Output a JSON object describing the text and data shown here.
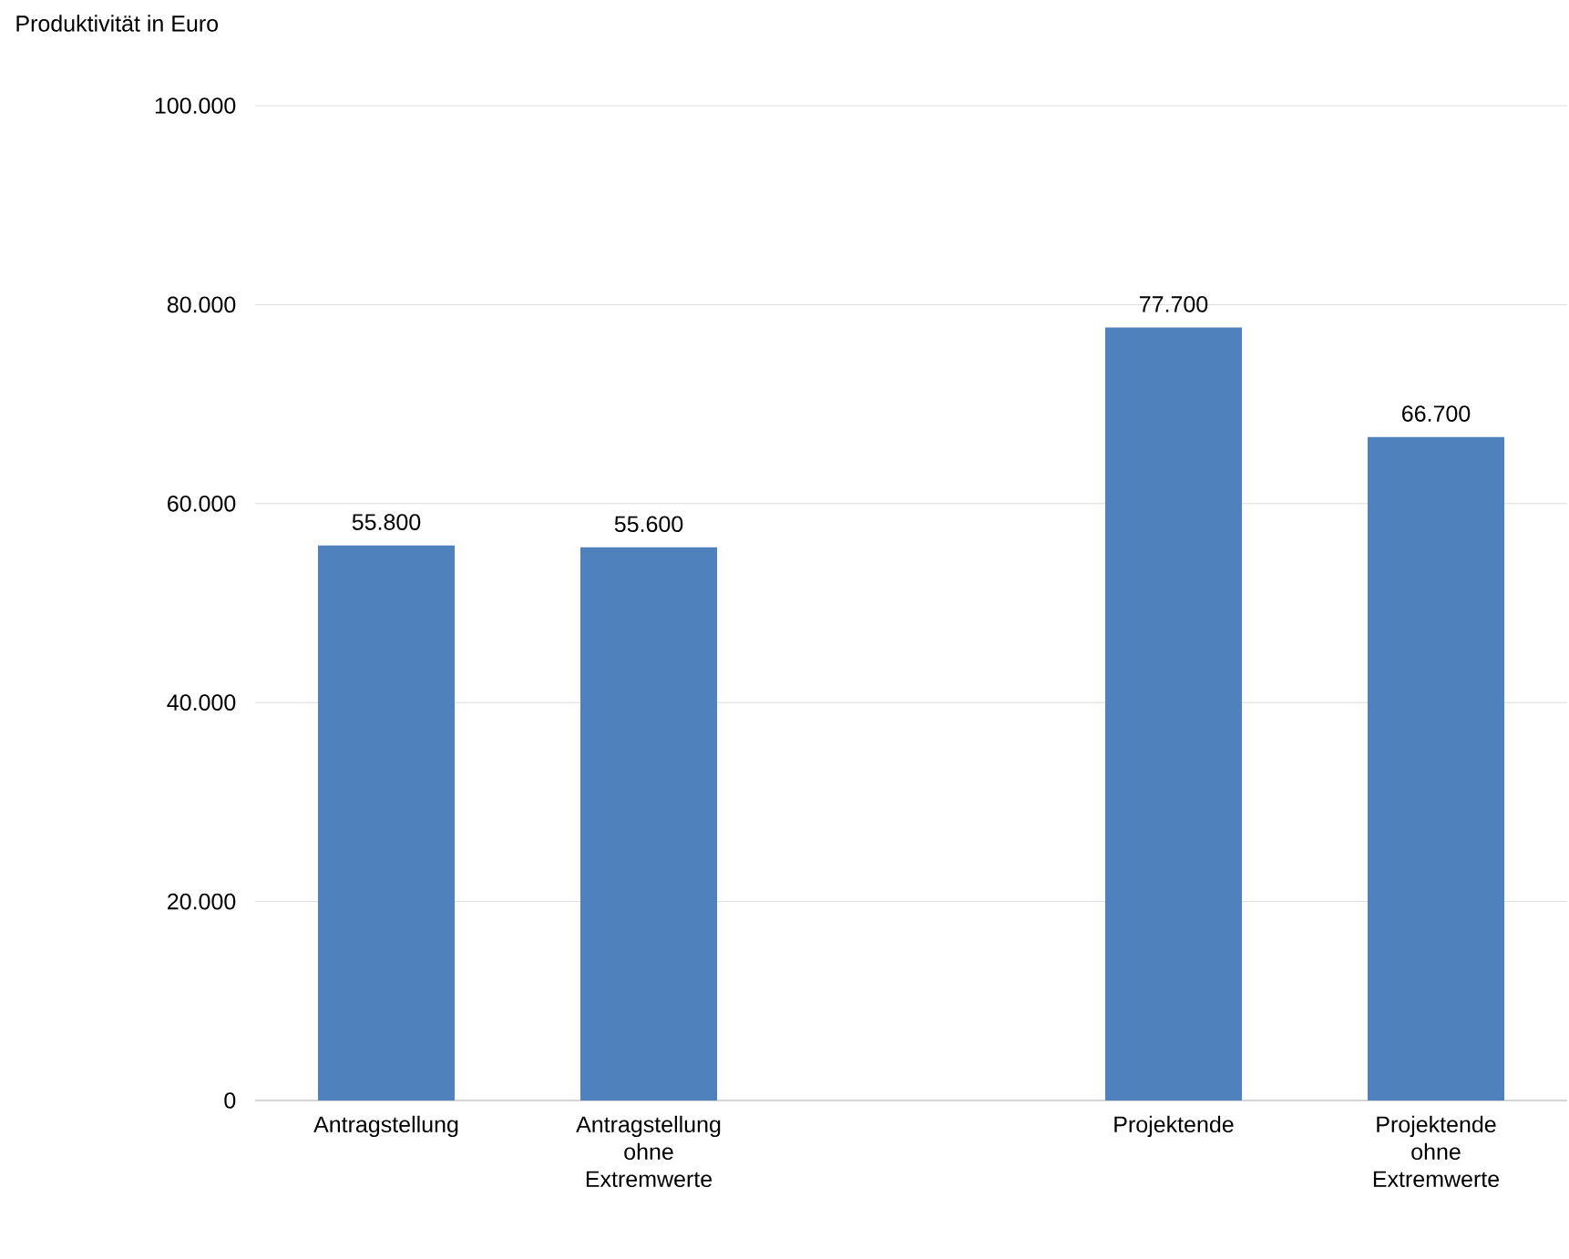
{
  "chart_data": {
    "type": "bar",
    "ylabel": "Produktivität in Euro",
    "categories": [
      "Antragstellung",
      "Antragstellung ohne Extremwerte",
      null,
      "Projektende",
      "Projektende ohne Extremwerte"
    ],
    "values": [
      55800,
      55600,
      null,
      77700,
      66700
    ],
    "value_labels": [
      "55.800",
      "55.600",
      null,
      "77.700",
      "66.700"
    ],
    "color": "#4f81bd",
    "ylim": [
      0,
      100000
    ],
    "yticks": [
      0,
      {
        "value": 20000,
        "label": "20.000"
      },
      {
        "value": 40000,
        "label": "40.000"
      },
      {
        "value": 60000,
        "label": "60.000"
      },
      {
        "value": 80000,
        "label": "80.000"
      },
      {
        "value": 100000,
        "label": "100.000"
      }
    ],
    "grid": "y"
  }
}
